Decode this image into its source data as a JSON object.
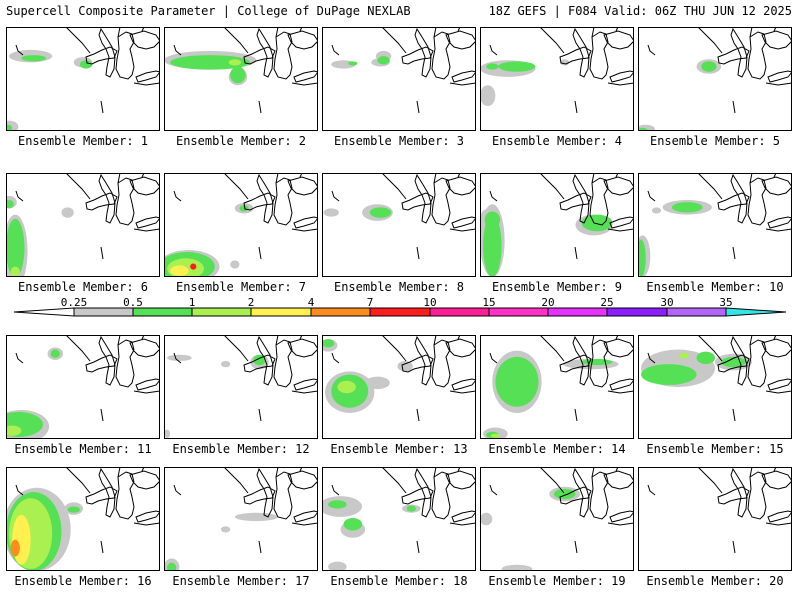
{
  "header": {
    "left": "Supercell Composite Parameter | College of DuPage NEXLAB",
    "right": "18Z GEFS | F084 Valid: 06Z THU JUN 12 2025"
  },
  "colorbar": {
    "labels": [
      "0.25",
      "0.5",
      "1",
      "2",
      "4",
      "7",
      "10",
      "15",
      "20",
      "25",
      "30",
      "35"
    ],
    "colors": [
      "#c8c8c8",
      "#55e055",
      "#aaf050",
      "#fff050",
      "#ff8c1e",
      "#ff1e1e",
      "#ff1e96",
      "#ff32c8",
      "#e632ff",
      "#8c1eff",
      "#b464ff",
      "#32e6e6"
    ]
  },
  "panels": [
    {
      "label": "Ensemble Member: 1",
      "blobs": [
        [
          0,
          0.16,
          0.28,
          0.14,
          0.06
        ],
        [
          0,
          0.5,
          0.34,
          0.06,
          0.05
        ],
        [
          0,
          0.02,
          0.96,
          0.06,
          0.06
        ],
        [
          1,
          0.18,
          0.3,
          0.08,
          0.03
        ],
        [
          1,
          0.52,
          0.36,
          0.04,
          0.04
        ],
        [
          1,
          0.01,
          0.97,
          0.03,
          0.03
        ]
      ]
    },
    {
      "label": "Ensemble Member: 2",
      "blobs": [
        [
          0,
          0.3,
          0.32,
          0.3,
          0.09
        ],
        [
          0,
          0.48,
          0.48,
          0.06,
          0.08
        ],
        [
          1,
          0.3,
          0.34,
          0.26,
          0.07
        ],
        [
          1,
          0.48,
          0.46,
          0.05,
          0.08
        ],
        [
          2,
          0.46,
          0.34,
          0.04,
          0.03
        ]
      ]
    },
    {
      "label": "Ensemble Member: 3",
      "blobs": [
        [
          0,
          0.14,
          0.36,
          0.08,
          0.04
        ],
        [
          0,
          0.38,
          0.34,
          0.06,
          0.04
        ],
        [
          0,
          0.4,
          0.28,
          0.05,
          0.05
        ],
        [
          1,
          0.4,
          0.32,
          0.04,
          0.04
        ],
        [
          1,
          0.2,
          0.35,
          0.03,
          0.02
        ]
      ]
    },
    {
      "label": "Ensemble Member: 4",
      "blobs": [
        [
          0,
          0.18,
          0.4,
          0.18,
          0.08
        ],
        [
          0,
          0.05,
          0.66,
          0.05,
          0.1
        ],
        [
          0,
          0.55,
          0.34,
          0.03,
          0.03
        ],
        [
          1,
          0.24,
          0.38,
          0.12,
          0.05
        ],
        [
          1,
          0.08,
          0.38,
          0.04,
          0.03
        ]
      ]
    },
    {
      "label": "Ensemble Member: 5",
      "blobs": [
        [
          0,
          0.46,
          0.38,
          0.08,
          0.07
        ],
        [
          0,
          0.05,
          0.98,
          0.06,
          0.04
        ],
        [
          1,
          0.46,
          0.38,
          0.05,
          0.05
        ],
        [
          1,
          0.03,
          0.99,
          0.03,
          0.02
        ]
      ]
    },
    {
      "label": "Ensemble Member: 6",
      "blobs": [
        [
          0,
          0.06,
          0.75,
          0.08,
          0.35
        ],
        [
          0,
          0.02,
          0.28,
          0.05,
          0.06
        ],
        [
          0,
          0.4,
          0.38,
          0.04,
          0.05
        ],
        [
          1,
          0.06,
          0.72,
          0.06,
          0.28
        ],
        [
          1,
          0.02,
          0.3,
          0.03,
          0.04
        ],
        [
          2,
          0.06,
          0.95,
          0.03,
          0.05
        ]
      ]
    },
    {
      "label": "Ensemble Member: 7",
      "blobs": [
        [
          0,
          0.16,
          0.9,
          0.2,
          0.16
        ],
        [
          0,
          0.52,
          0.34,
          0.06,
          0.05
        ],
        [
          0,
          0.46,
          0.88,
          0.03,
          0.04
        ],
        [
          1,
          0.15,
          0.9,
          0.18,
          0.14
        ],
        [
          1,
          0.52,
          0.34,
          0.03,
          0.03
        ],
        [
          2,
          0.14,
          0.92,
          0.12,
          0.1
        ],
        [
          3,
          0.1,
          0.94,
          0.06,
          0.05
        ],
        [
          5,
          0.19,
          0.9,
          0.02,
          0.03
        ]
      ]
    },
    {
      "label": "Ensemble Member: 8",
      "blobs": [
        [
          0,
          0.36,
          0.38,
          0.1,
          0.08
        ],
        [
          0,
          0.06,
          0.38,
          0.05,
          0.04
        ],
        [
          1,
          0.38,
          0.38,
          0.07,
          0.05
        ]
      ]
    },
    {
      "label": "Ensemble Member: 9",
      "blobs": [
        [
          0,
          0.08,
          0.65,
          0.08,
          0.35
        ],
        [
          0,
          0.74,
          0.5,
          0.12,
          0.1
        ],
        [
          0,
          0.04,
          0.45,
          0.04,
          0.1
        ],
        [
          1,
          0.08,
          0.7,
          0.06,
          0.3
        ],
        [
          1,
          0.76,
          0.48,
          0.1,
          0.08
        ],
        [
          1,
          0.08,
          0.45,
          0.05,
          0.08
        ]
      ]
    },
    {
      "label": "Ensemble Member: 10",
      "blobs": [
        [
          0,
          0.32,
          0.33,
          0.16,
          0.07
        ],
        [
          0,
          0.03,
          0.8,
          0.05,
          0.2
        ],
        [
          1,
          0.32,
          0.33,
          0.1,
          0.05
        ],
        [
          1,
          0.02,
          0.82,
          0.03,
          0.18
        ],
        [
          0,
          0.12,
          0.36,
          0.03,
          0.03
        ]
      ]
    },
    {
      "label": "Ensemble Member: 11",
      "blobs": [
        [
          0,
          0.1,
          0.88,
          0.18,
          0.16
        ],
        [
          0,
          0.32,
          0.18,
          0.05,
          0.06
        ],
        [
          1,
          0.08,
          0.86,
          0.16,
          0.12
        ],
        [
          1,
          0.32,
          0.18,
          0.03,
          0.04
        ],
        [
          2,
          0.04,
          0.92,
          0.06,
          0.05
        ]
      ]
    },
    {
      "label": "Ensemble Member: 12",
      "blobs": [
        [
          0,
          0.62,
          0.26,
          0.06,
          0.07
        ],
        [
          0,
          0.1,
          0.22,
          0.08,
          0.03
        ],
        [
          0,
          0.4,
          0.28,
          0.03,
          0.03
        ],
        [
          1,
          0.62,
          0.24,
          0.04,
          0.05
        ],
        [
          0,
          0.02,
          0.95,
          0.02,
          0.04
        ]
      ]
    },
    {
      "label": "Ensemble Member: 13",
      "blobs": [
        [
          0,
          0.18,
          0.55,
          0.16,
          0.2
        ],
        [
          0,
          0.36,
          0.46,
          0.08,
          0.06
        ],
        [
          0,
          0.54,
          0.3,
          0.05,
          0.05
        ],
        [
          0,
          0.04,
          0.1,
          0.06,
          0.06
        ],
        [
          1,
          0.18,
          0.54,
          0.12,
          0.16
        ],
        [
          1,
          0.04,
          0.08,
          0.04,
          0.04
        ],
        [
          2,
          0.16,
          0.5,
          0.06,
          0.06
        ]
      ]
    },
    {
      "label": "Ensemble Member: 14",
      "blobs": [
        [
          0,
          0.24,
          0.45,
          0.16,
          0.3
        ],
        [
          0,
          0.72,
          0.28,
          0.18,
          0.05
        ],
        [
          0,
          0.1,
          0.95,
          0.08,
          0.06
        ],
        [
          1,
          0.24,
          0.45,
          0.14,
          0.24
        ],
        [
          1,
          0.76,
          0.26,
          0.1,
          0.03
        ],
        [
          1,
          0.08,
          0.96,
          0.04,
          0.03
        ],
        [
          2,
          0.1,
          0.97,
          0.03,
          0.02
        ]
      ]
    },
    {
      "label": "Ensemble Member: 15",
      "blobs": [
        [
          0,
          0.26,
          0.32,
          0.24,
          0.18
        ],
        [
          0,
          0.62,
          0.26,
          0.12,
          0.08
        ],
        [
          1,
          0.2,
          0.38,
          0.18,
          0.1
        ],
        [
          1,
          0.44,
          0.22,
          0.06,
          0.06
        ],
        [
          1,
          0.62,
          0.26,
          0.08,
          0.05
        ],
        [
          2,
          0.3,
          0.2,
          0.03,
          0.03
        ]
      ]
    },
    {
      "label": "Ensemble Member: 16",
      "blobs": [
        [
          0,
          0.2,
          0.6,
          0.22,
          0.4
        ],
        [
          0,
          0.44,
          0.4,
          0.06,
          0.06
        ],
        [
          1,
          0.18,
          0.62,
          0.18,
          0.38
        ],
        [
          1,
          0.44,
          0.41,
          0.04,
          0.03
        ],
        [
          2,
          0.16,
          0.64,
          0.14,
          0.34
        ],
        [
          3,
          0.1,
          0.7,
          0.06,
          0.24
        ],
        [
          4,
          0.06,
          0.78,
          0.03,
          0.08
        ]
      ]
    },
    {
      "label": "Ensemble Member: 17",
      "blobs": [
        [
          0,
          0.6,
          0.48,
          0.14,
          0.04
        ],
        [
          0,
          0.05,
          0.96,
          0.05,
          0.08
        ],
        [
          0,
          0.4,
          0.6,
          0.03,
          0.03
        ],
        [
          1,
          0.05,
          0.97,
          0.03,
          0.05
        ]
      ]
    },
    {
      "label": "Ensemble Member: 18",
      "blobs": [
        [
          0,
          0.12,
          0.38,
          0.14,
          0.1
        ],
        [
          0,
          0.2,
          0.6,
          0.08,
          0.08
        ],
        [
          0,
          0.58,
          0.4,
          0.06,
          0.04
        ],
        [
          0,
          0.1,
          0.96,
          0.06,
          0.05
        ],
        [
          1,
          0.2,
          0.55,
          0.06,
          0.06
        ],
        [
          1,
          0.1,
          0.36,
          0.06,
          0.04
        ],
        [
          1,
          0.58,
          0.4,
          0.03,
          0.03
        ]
      ]
    },
    {
      "label": "Ensemble Member: 19",
      "blobs": [
        [
          0,
          0.55,
          0.26,
          0.1,
          0.07
        ],
        [
          0,
          0.24,
          0.98,
          0.1,
          0.04
        ],
        [
          1,
          0.55,
          0.26,
          0.07,
          0.05
        ],
        [
          0,
          0.04,
          0.5,
          0.04,
          0.06
        ]
      ]
    },
    {
      "label": "Ensemble Member: 20",
      "blobs": []
    }
  ]
}
